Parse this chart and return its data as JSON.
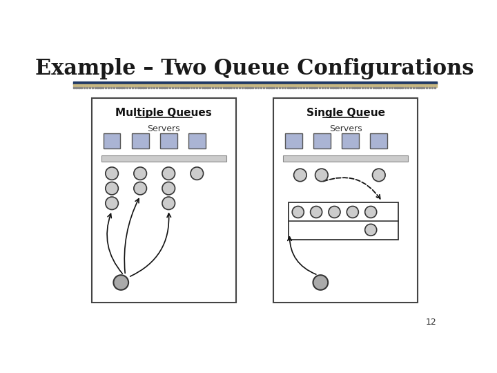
{
  "title": "Example – Two Queue Configurations",
  "title_fontsize": 22,
  "title_fontweight": "bold",
  "title_color": "#1a1a1a",
  "background_color": "#ffffff",
  "left_panel_title": "Multiple Queues",
  "right_panel_title": "Single Queue",
  "servers_label": "Servers",
  "page_number": "12",
  "server_color": "#aab4d4",
  "person_fill": "#cccccc",
  "person_outline": "#333333",
  "arrow_color": "#111111"
}
